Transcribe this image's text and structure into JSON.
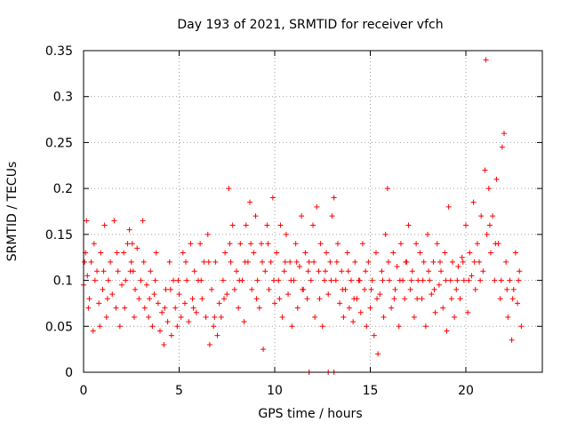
{
  "chart_data": {
    "type": "scatter",
    "title": "Day 193 of 2021, SRMTID for receiver vfch",
    "xlabel": "GPS time / hours",
    "ylabel": "SRMTID / TECUs",
    "xlim": [
      0,
      24
    ],
    "ylim": [
      0,
      0.35
    ],
    "x_ticks": [
      0,
      5,
      10,
      15,
      20
    ],
    "y_ticks": [
      0,
      0.05,
      0.1,
      0.15,
      0.2,
      0.25,
      0.3,
      0.35
    ],
    "x_tick_labels": [
      "0",
      "5",
      "10",
      "15",
      "20"
    ],
    "y_tick_labels": [
      "0",
      "0.05",
      "0.1",
      "0.15",
      "0.2",
      "0.25",
      "0.3",
      "0.35"
    ],
    "grid": true,
    "marker": "+",
    "color": "#ff0000",
    "series": [
      {
        "name": "SRMTID",
        "points": [
          [
            0.0,
            0.095
          ],
          [
            0.1,
            0.13
          ],
          [
            0.15,
            0.165
          ],
          [
            0.2,
            0.105
          ],
          [
            0.3,
            0.08
          ],
          [
            0.4,
            0.12
          ],
          [
            0.5,
            0.045
          ],
          [
            0.6,
            0.1
          ],
          [
            0.7,
            0.11
          ],
          [
            0.8,
            0.075
          ],
          [
            0.9,
            0.13
          ],
          [
            1.0,
            0.09
          ],
          [
            1.1,
            0.16
          ],
          [
            1.2,
            0.06
          ],
          [
            1.3,
            0.1
          ],
          [
            1.4,
            0.12
          ],
          [
            1.5,
            0.085
          ],
          [
            1.6,
            0.165
          ],
          [
            1.7,
            0.07
          ],
          [
            1.8,
            0.11
          ],
          [
            1.9,
            0.05
          ],
          [
            2.0,
            0.095
          ],
          [
            2.1,
            0.13
          ],
          [
            2.2,
            0.1
          ],
          [
            2.3,
            0.14
          ],
          [
            2.4,
            0.155
          ],
          [
            2.5,
            0.12
          ],
          [
            2.6,
            0.11
          ],
          [
            2.7,
            0.09
          ],
          [
            2.8,
            0.135
          ],
          [
            2.9,
            0.08
          ],
          [
            3.0,
            0.1
          ],
          [
            3.1,
            0.165
          ],
          [
            3.2,
            0.07
          ],
          [
            3.3,
            0.095
          ],
          [
            3.4,
            0.06
          ],
          [
            3.5,
            0.11
          ],
          [
            3.6,
            0.05
          ],
          [
            3.7,
            0.085
          ],
          [
            3.8,
            0.13
          ],
          [
            3.9,
            0.075
          ],
          [
            4.0,
            0.045
          ],
          [
            4.1,
            0.065
          ],
          [
            4.2,
            0.03
          ],
          [
            4.3,
            0.09
          ],
          [
            4.4,
            0.055
          ],
          [
            4.5,
            0.12
          ],
          [
            4.6,
            0.04
          ],
          [
            4.7,
            0.1
          ],
          [
            4.8,
            0.07
          ],
          [
            4.9,
            0.05
          ],
          [
            5.0,
            0.085
          ],
          [
            5.1,
            0.06
          ],
          [
            5.2,
            0.13
          ],
          [
            5.3,
            0.075
          ],
          [
            5.4,
            0.1
          ],
          [
            5.5,
            0.055
          ],
          [
            5.6,
            0.14
          ],
          [
            5.7,
            0.08
          ],
          [
            5.8,
            0.11
          ],
          [
            5.9,
            0.065
          ],
          [
            6.0,
            0.1
          ],
          [
            6.1,
            0.14
          ],
          [
            6.2,
            0.08
          ],
          [
            6.3,
            0.12
          ],
          [
            6.4,
            0.06
          ],
          [
            6.5,
            0.15
          ],
          [
            6.6,
            0.03
          ],
          [
            6.7,
            0.09
          ],
          [
            6.8,
            0.05
          ],
          [
            6.9,
            0.12
          ],
          [
            7.0,
            0.04
          ],
          [
            7.1,
            0.075
          ],
          [
            7.2,
            0.06
          ],
          [
            7.3,
            0.1
          ],
          [
            7.4,
            0.13
          ],
          [
            7.5,
            0.085
          ],
          [
            7.6,
            0.2
          ],
          [
            7.7,
            0.12
          ],
          [
            7.8,
            0.16
          ],
          [
            7.9,
            0.09
          ],
          [
            8.0,
            0.11
          ],
          [
            8.1,
            0.07
          ],
          [
            8.2,
            0.14
          ],
          [
            8.3,
            0.1
          ],
          [
            8.4,
            0.055
          ],
          [
            8.5,
            0.16
          ],
          [
            8.6,
            0.12
          ],
          [
            8.7,
            0.185
          ],
          [
            8.8,
            0.09
          ],
          [
            8.9,
            0.13
          ],
          [
            9.0,
            0.17
          ],
          [
            9.1,
            0.1
          ],
          [
            9.2,
            0.07
          ],
          [
            9.3,
            0.14
          ],
          [
            9.4,
            0.025
          ],
          [
            9.5,
            0.11
          ],
          [
            9.6,
            0.16
          ],
          [
            9.7,
            0.09
          ],
          [
            9.8,
            0.12
          ],
          [
            9.9,
            0.19
          ],
          [
            10.0,
            0.075
          ],
          [
            10.1,
            0.13
          ],
          [
            10.2,
            0.1
          ],
          [
            10.3,
            0.16
          ],
          [
            10.4,
            0.06
          ],
          [
            10.5,
            0.11
          ],
          [
            10.6,
            0.15
          ],
          [
            10.7,
            0.085
          ],
          [
            10.8,
            0.12
          ],
          [
            10.9,
            0.05
          ],
          [
            11.0,
            0.1
          ],
          [
            11.1,
            0.14
          ],
          [
            11.2,
            0.07
          ],
          [
            11.3,
            0.115
          ],
          [
            11.4,
            0.17
          ],
          [
            11.5,
            0.09
          ],
          [
            11.6,
            0.13
          ],
          [
            11.7,
            0.08
          ],
          [
            11.8,
            0.12
          ],
          [
            11.9,
            0.1
          ],
          [
            12.0,
            0.16
          ],
          [
            12.1,
            0.06
          ],
          [
            12.2,
            0.18
          ],
          [
            12.3,
            0.11
          ],
          [
            12.4,
            0.14
          ],
          [
            12.5,
            0.05
          ],
          [
            12.6,
            0.1
          ],
          [
            12.7,
            0.13
          ],
          [
            12.8,
            0.085
          ],
          [
            12.9,
            0.12
          ],
          [
            13.0,
            0.17
          ],
          [
            13.1,
            0.19
          ],
          [
            13.2,
            0.1
          ],
          [
            13.3,
            0.14
          ],
          [
            13.4,
            0.075
          ],
          [
            13.5,
            0.11
          ],
          [
            13.6,
            0.06
          ],
          [
            13.7,
            0.09
          ],
          [
            13.8,
            0.13
          ],
          [
            13.9,
            0.07
          ],
          [
            14.0,
            0.1
          ],
          [
            14.1,
            0.055
          ],
          [
            14.2,
            0.12
          ],
          [
            14.3,
            0.08
          ],
          [
            14.4,
            0.1
          ],
          [
            14.5,
            0.065
          ],
          [
            14.6,
            0.14
          ],
          [
            14.7,
            0.09
          ],
          [
            14.8,
            0.05
          ],
          [
            14.9,
            0.12
          ],
          [
            15.0,
            0.07
          ],
          [
            15.1,
            0.1
          ],
          [
            15.2,
            0.04
          ],
          [
            15.3,
            0.13
          ],
          [
            15.4,
            0.02
          ],
          [
            15.5,
            0.085
          ],
          [
            15.6,
            0.11
          ],
          [
            15.7,
            0.06
          ],
          [
            15.8,
            0.15
          ],
          [
            15.9,
            0.2
          ],
          [
            16.0,
            0.1
          ],
          [
            16.1,
            0.07
          ],
          [
            16.2,
            0.13
          ],
          [
            16.3,
            0.09
          ],
          [
            16.4,
            0.115
          ],
          [
            16.5,
            0.05
          ],
          [
            16.6,
            0.14
          ],
          [
            16.7,
            0.1
          ],
          [
            16.8,
            0.08
          ],
          [
            16.9,
            0.12
          ],
          [
            17.0,
            0.16
          ],
          [
            17.1,
            0.09
          ],
          [
            17.2,
            0.11
          ],
          [
            17.3,
            0.06
          ],
          [
            17.4,
            0.14
          ],
          [
            17.5,
            0.1
          ],
          [
            17.6,
            0.13
          ],
          [
            17.7,
            0.08
          ],
          [
            17.8,
            0.12
          ],
          [
            17.9,
            0.05
          ],
          [
            18.0,
            0.15
          ],
          [
            18.1,
            0.1
          ],
          [
            18.2,
            0.085
          ],
          [
            18.3,
            0.12
          ],
          [
            18.4,
            0.065
          ],
          [
            18.5,
            0.14
          ],
          [
            18.6,
            0.095
          ],
          [
            18.7,
            0.11
          ],
          [
            18.8,
            0.07
          ],
          [
            18.9,
            0.13
          ],
          [
            19.0,
            0.045
          ],
          [
            19.1,
            0.18
          ],
          [
            19.2,
            0.1
          ],
          [
            19.3,
            0.12
          ],
          [
            19.4,
            0.06
          ],
          [
            19.5,
            0.09
          ],
          [
            19.6,
            0.115
          ],
          [
            19.7,
            0.08
          ],
          [
            19.8,
            0.125
          ],
          [
            19.9,
            0.1
          ],
          [
            20.0,
            0.16
          ],
          [
            20.1,
            0.065
          ],
          [
            20.2,
            0.13
          ],
          [
            20.3,
            0.105
          ],
          [
            20.4,
            0.185
          ],
          [
            20.5,
            0.09
          ],
          [
            20.6,
            0.14
          ],
          [
            20.7,
            0.12
          ],
          [
            20.8,
            0.17
          ],
          [
            20.9,
            0.11
          ],
          [
            21.0,
            0.22
          ],
          [
            21.05,
            0.34
          ],
          [
            21.1,
            0.15
          ],
          [
            21.2,
            0.2
          ],
          [
            21.3,
            0.13
          ],
          [
            21.4,
            0.17
          ],
          [
            21.5,
            0.1
          ],
          [
            21.6,
            0.21
          ],
          [
            21.7,
            0.14
          ],
          [
            21.8,
            0.08
          ],
          [
            21.9,
            0.245
          ],
          [
            22.0,
            0.26
          ],
          [
            22.1,
            0.12
          ],
          [
            22.2,
            0.06
          ],
          [
            22.3,
            0.1
          ],
          [
            22.4,
            0.035
          ],
          [
            22.5,
            0.09
          ],
          [
            22.6,
            0.13
          ],
          [
            22.7,
            0.075
          ],
          [
            22.8,
            0.11
          ],
          [
            22.9,
            0.05
          ],
          [
            0.05,
            0.12
          ],
          [
            0.25,
            0.07
          ],
          [
            0.55,
            0.14
          ],
          [
            0.85,
            0.05
          ],
          [
            1.05,
            0.11
          ],
          [
            1.25,
            0.08
          ],
          [
            1.75,
            0.13
          ],
          [
            2.15,
            0.07
          ],
          [
            2.45,
            0.11
          ],
          [
            2.55,
            0.14
          ],
          [
            2.65,
            0.06
          ],
          [
            3.15,
            0.12
          ],
          [
            3.45,
            0.08
          ],
          [
            3.75,
            0.1
          ],
          [
            4.25,
            0.07
          ],
          [
            4.55,
            0.09
          ],
          [
            4.95,
            0.1
          ],
          [
            5.35,
            0.12
          ],
          [
            5.75,
            0.07
          ],
          [
            6.15,
            0.1
          ],
          [
            6.55,
            0.12
          ],
          [
            6.85,
            0.06
          ],
          [
            7.35,
            0.08
          ],
          [
            7.65,
            0.14
          ],
          [
            8.15,
            0.1
          ],
          [
            8.45,
            0.12
          ],
          [
            8.75,
            0.14
          ],
          [
            9.05,
            0.08
          ],
          [
            9.35,
            0.12
          ],
          [
            9.65,
            0.14
          ],
          [
            9.95,
            0.1
          ],
          [
            10.25,
            0.08
          ],
          [
            10.55,
            0.12
          ],
          [
            10.85,
            0.1
          ],
          [
            11.15,
            0.12
          ],
          [
            11.45,
            0.09
          ],
          [
            11.75,
            0.11
          ],
          [
            12.05,
            0.12
          ],
          [
            12.35,
            0.08
          ],
          [
            12.65,
            0.11
          ],
          [
            12.95,
            0.1
          ],
          [
            13.25,
            0.12
          ],
          [
            13.55,
            0.09
          ],
          [
            13.85,
            0.11
          ],
          [
            14.15,
            0.08
          ],
          [
            14.45,
            0.1
          ],
          [
            14.75,
            0.11
          ],
          [
            15.05,
            0.09
          ],
          [
            15.35,
            0.08
          ],
          [
            15.65,
            0.1
          ],
          [
            15.95,
            0.12
          ],
          [
            16.25,
            0.08
          ],
          [
            16.55,
            0.1
          ],
          [
            16.85,
            0.12
          ],
          [
            17.15,
            0.1
          ],
          [
            17.45,
            0.08
          ],
          [
            17.75,
            0.1
          ],
          [
            18.05,
            0.11
          ],
          [
            18.35,
            0.09
          ],
          [
            18.65,
            0.12
          ],
          [
            18.95,
            0.1
          ],
          [
            19.25,
            0.08
          ],
          [
            19.55,
            0.1
          ],
          [
            19.85,
            0.12
          ],
          [
            20.15,
            0.1
          ],
          [
            20.45,
            0.12
          ],
          [
            20.75,
            0.1
          ],
          [
            21.25,
            0.16
          ],
          [
            21.55,
            0.14
          ],
          [
            21.85,
            0.1
          ],
          [
            22.15,
            0.09
          ],
          [
            22.45,
            0.08
          ],
          [
            22.75,
            0.1
          ],
          [
            11.8,
            0.0
          ],
          [
            12.8,
            0.0
          ],
          [
            13.1,
            0.0
          ]
        ]
      }
    ]
  }
}
